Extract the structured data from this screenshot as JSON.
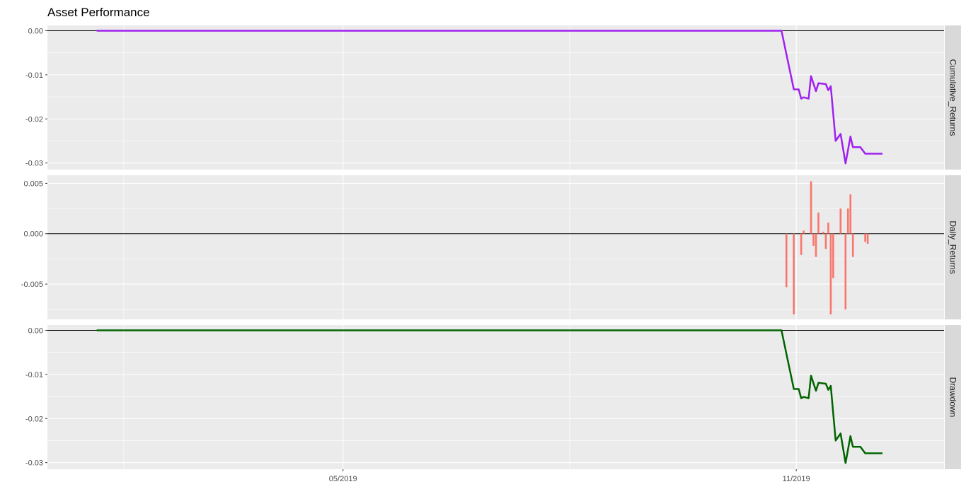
{
  "chart_data": {
    "type": "line",
    "title": "Asset Performance",
    "x_ticks": [
      "05/2019",
      "11/2019"
    ],
    "x_range": [
      "2019-01-01",
      "2019-12-31"
    ],
    "grid": true,
    "facets": [
      {
        "strip": "Cumulative_Returns",
        "type": "line",
        "color": "#a020f0",
        "y_ticks": [
          "0.00",
          "-0.01",
          "-0.02",
          "-0.03"
        ],
        "ylim": [
          -0.0315,
          0.0012
        ],
        "points": [
          {
            "x": "2019-01-21",
            "y": 0.0
          },
          {
            "x": "2019-10-26",
            "y": 0.0
          },
          {
            "x": "2019-10-28",
            "y": -0.0053
          },
          {
            "x": "2019-10-31",
            "y": -0.0133
          },
          {
            "x": "2019-11-02",
            "y": -0.0133
          },
          {
            "x": "2019-11-03",
            "y": -0.0154
          },
          {
            "x": "2019-11-04",
            "y": -0.0151
          },
          {
            "x": "2019-11-06",
            "y": -0.0154
          },
          {
            "x": "2019-11-07",
            "y": -0.0103
          },
          {
            "x": "2019-11-09",
            "y": -0.0137
          },
          {
            "x": "2019-11-10",
            "y": -0.0119
          },
          {
            "x": "2019-11-13",
            "y": -0.0121
          },
          {
            "x": "2019-11-14",
            "y": -0.0135
          },
          {
            "x": "2019-11-15",
            "y": -0.0126
          },
          {
            "x": "2019-11-17",
            "y": -0.025
          },
          {
            "x": "2019-11-19",
            "y": -0.0234
          },
          {
            "x": "2019-11-21",
            "y": -0.0301
          },
          {
            "x": "2019-11-23",
            "y": -0.024
          },
          {
            "x": "2019-11-24",
            "y": -0.0264
          },
          {
            "x": "2019-11-27",
            "y": -0.0264
          },
          {
            "x": "2019-11-29",
            "y": -0.0279
          },
          {
            "x": "2019-12-06",
            "y": -0.0279
          }
        ]
      },
      {
        "strip": "Daily_Returns",
        "type": "bar",
        "color": "#f8766d",
        "y_ticks": [
          "0.005",
          "0.000",
          "-0.005"
        ],
        "ylim": [
          -0.0085,
          0.0058
        ],
        "bars": [
          {
            "x": "2019-10-28",
            "y": -0.0053
          },
          {
            "x": "2019-10-31",
            "y": -0.008
          },
          {
            "x": "2019-11-03",
            "y": -0.0021
          },
          {
            "x": "2019-11-04",
            "y": 0.0003
          },
          {
            "x": "2019-11-07",
            "y": 0.0052
          },
          {
            "x": "2019-11-08",
            "y": -0.0012
          },
          {
            "x": "2019-11-09",
            "y": -0.0023
          },
          {
            "x": "2019-11-10",
            "y": 0.0021
          },
          {
            "x": "2019-11-12",
            "y": 0.0002
          },
          {
            "x": "2019-11-13",
            "y": -0.0015
          },
          {
            "x": "2019-11-14",
            "y": 0.0011
          },
          {
            "x": "2019-11-15",
            "y": -0.008
          },
          {
            "x": "2019-11-16",
            "y": -0.0044
          },
          {
            "x": "2019-11-19",
            "y": 0.0025
          },
          {
            "x": "2019-11-21",
            "y": -0.0075
          },
          {
            "x": "2019-11-22",
            "y": 0.0025
          },
          {
            "x": "2019-11-23",
            "y": 0.0039
          },
          {
            "x": "2019-11-24",
            "y": -0.0023
          },
          {
            "x": "2019-11-29",
            "y": -0.0008
          },
          {
            "x": "2019-11-30",
            "y": -0.001
          }
        ]
      },
      {
        "strip": "Drawdown",
        "type": "line",
        "color": "#006400",
        "y_ticks": [
          "0.00",
          "-0.01",
          "-0.02",
          "-0.03"
        ],
        "ylim": [
          -0.0315,
          0.0012
        ],
        "points": [
          {
            "x": "2019-01-21",
            "y": 0.0
          },
          {
            "x": "2019-10-26",
            "y": 0.0
          },
          {
            "x": "2019-10-28",
            "y": -0.0053
          },
          {
            "x": "2019-10-31",
            "y": -0.0133
          },
          {
            "x": "2019-11-02",
            "y": -0.0133
          },
          {
            "x": "2019-11-03",
            "y": -0.0154
          },
          {
            "x": "2019-11-04",
            "y": -0.0151
          },
          {
            "x": "2019-11-06",
            "y": -0.0154
          },
          {
            "x": "2019-11-07",
            "y": -0.0103
          },
          {
            "x": "2019-11-09",
            "y": -0.0137
          },
          {
            "x": "2019-11-10",
            "y": -0.0119
          },
          {
            "x": "2019-11-13",
            "y": -0.0121
          },
          {
            "x": "2019-11-14",
            "y": -0.0135
          },
          {
            "x": "2019-11-15",
            "y": -0.0126
          },
          {
            "x": "2019-11-17",
            "y": -0.025
          },
          {
            "x": "2019-11-19",
            "y": -0.0234
          },
          {
            "x": "2019-11-21",
            "y": -0.0301
          },
          {
            "x": "2019-11-23",
            "y": -0.024
          },
          {
            "x": "2019-11-24",
            "y": -0.0264
          },
          {
            "x": "2019-11-27",
            "y": -0.0264
          },
          {
            "x": "2019-11-29",
            "y": -0.0279
          },
          {
            "x": "2019-12-06",
            "y": -0.0279
          }
        ]
      }
    ]
  }
}
